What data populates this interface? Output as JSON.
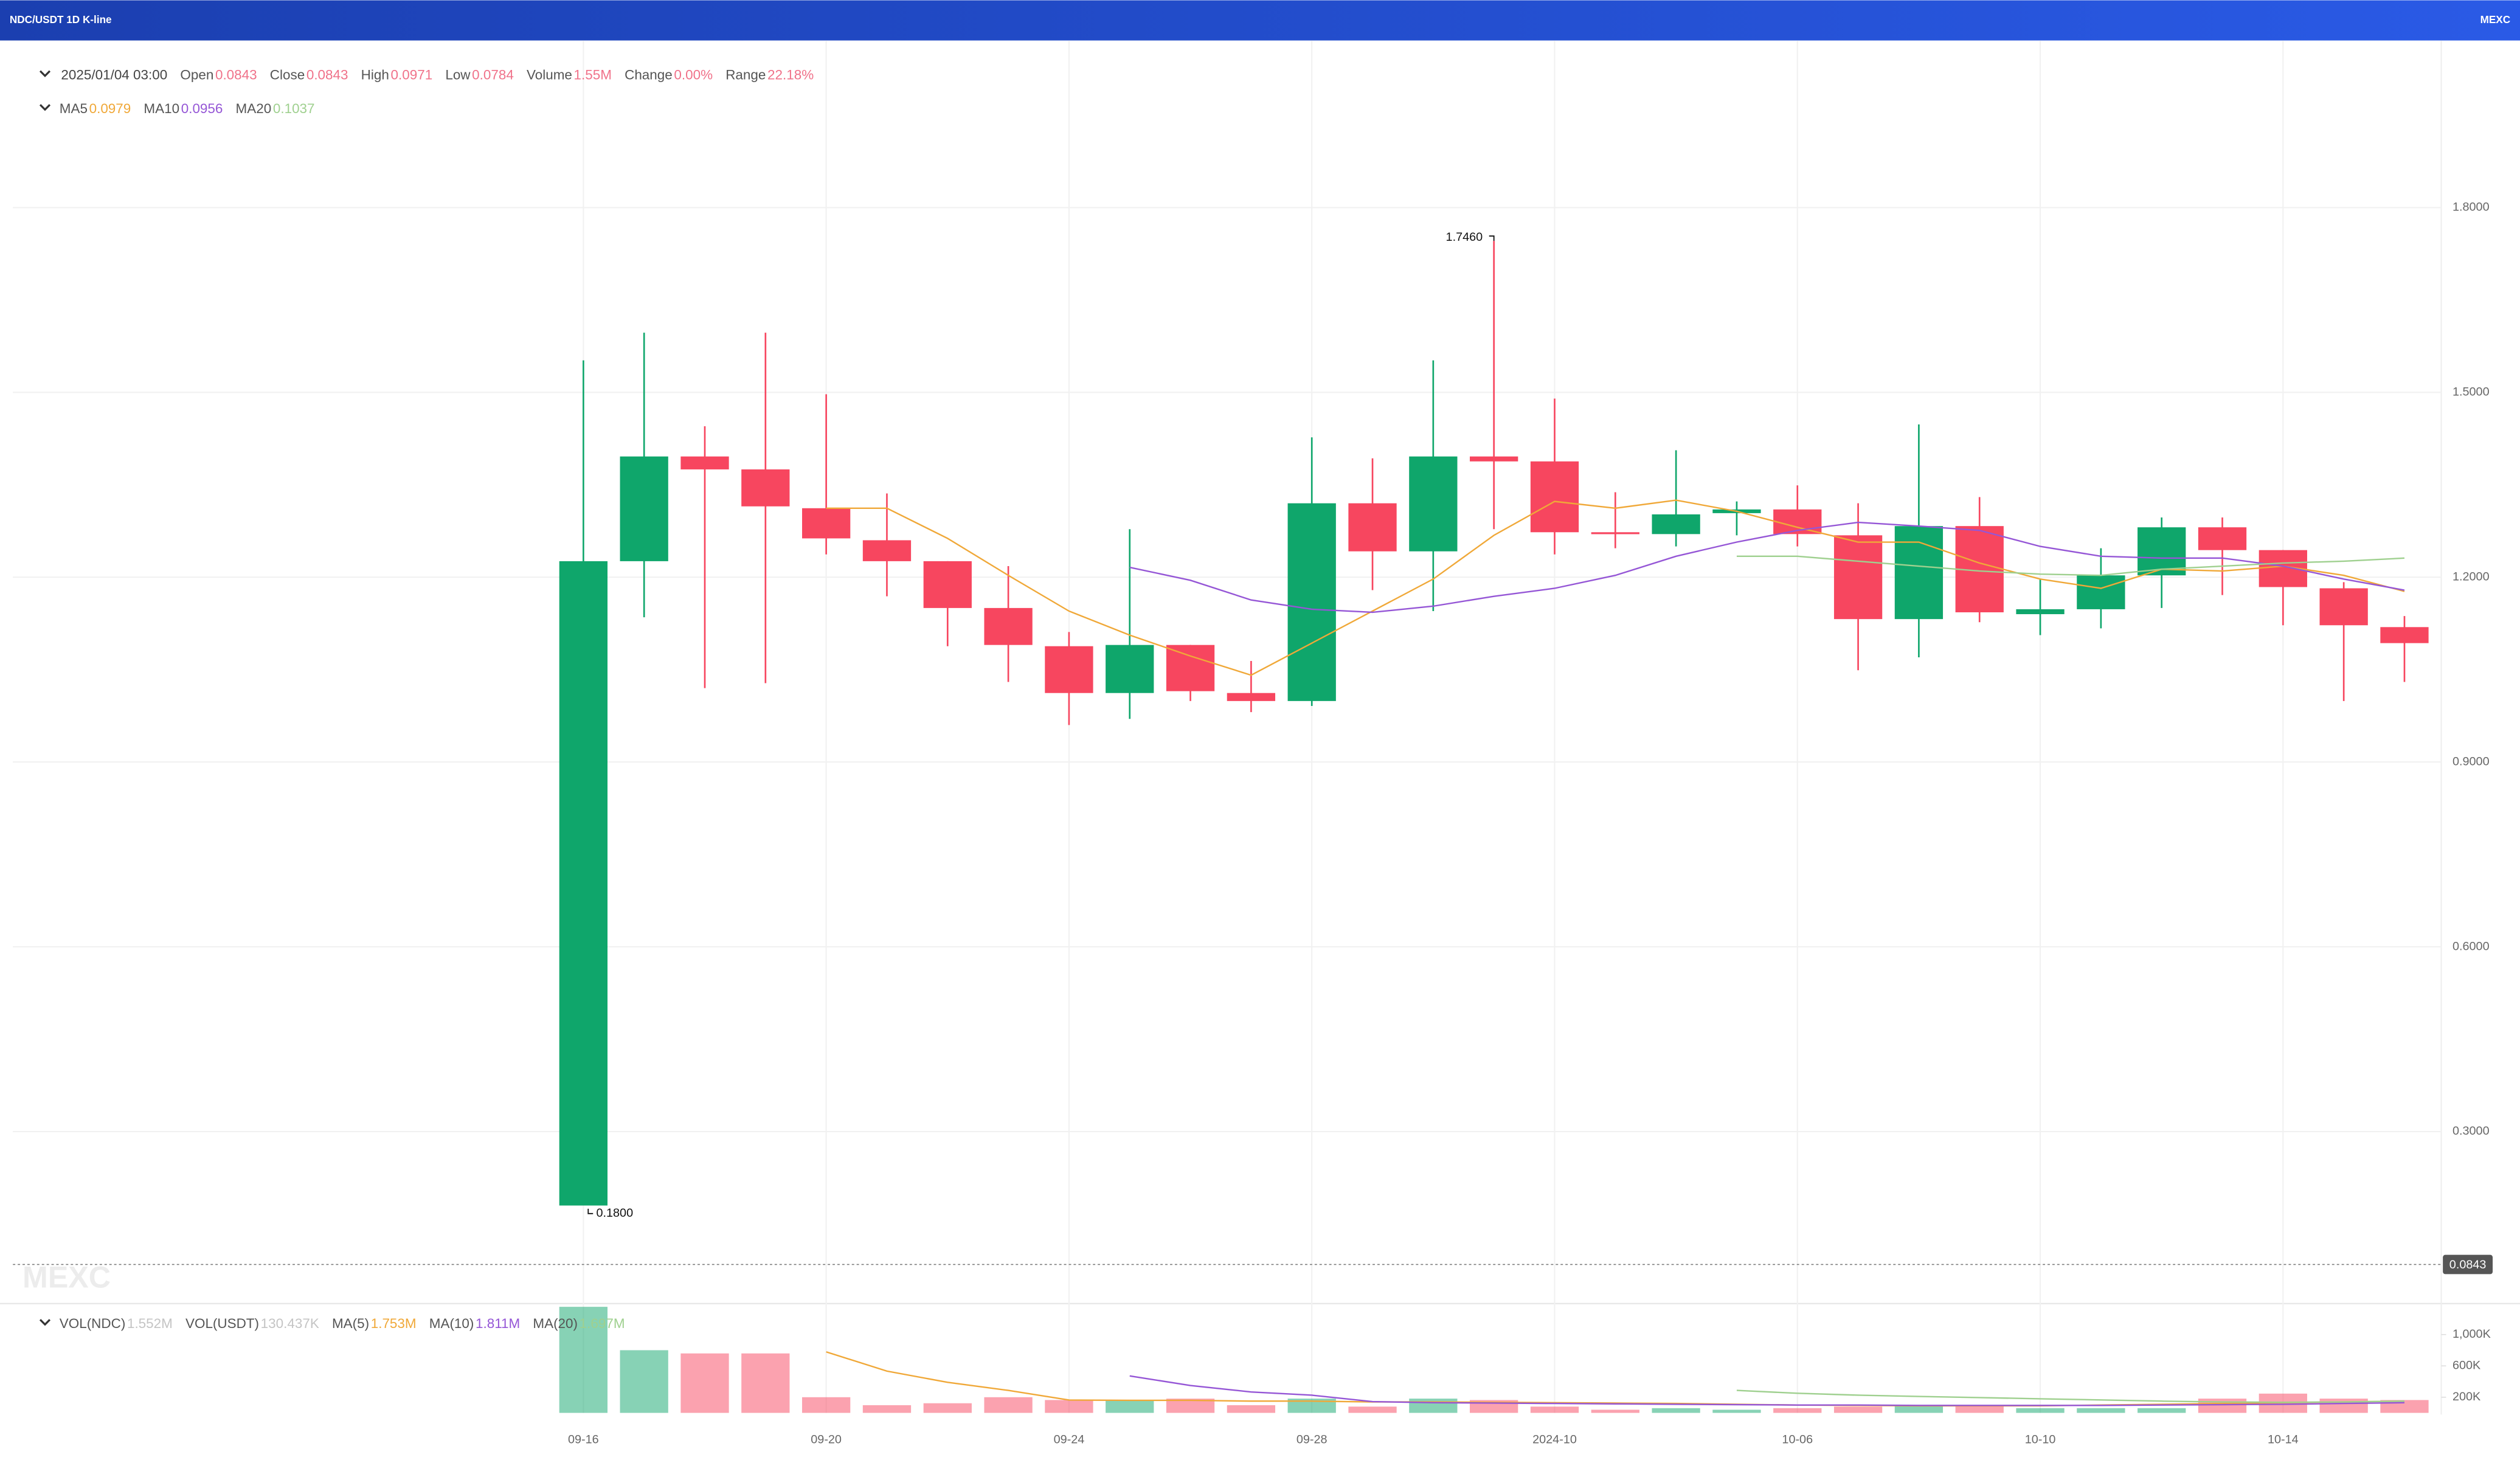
{
  "header": {
    "title": "NDC/USDT 1D K-line",
    "logo": "MEXC"
  },
  "info": {
    "date": "2025/01/04 03:00",
    "fields": [
      {
        "label": "Open",
        "value": "0.0843"
      },
      {
        "label": "Close",
        "value": "0.0843"
      },
      {
        "label": "High",
        "value": "0.0971"
      },
      {
        "label": "Low",
        "value": "0.0784"
      },
      {
        "label": "Volume",
        "value": "1.55M"
      },
      {
        "label": "Change",
        "value": "0.00%"
      },
      {
        "label": "Range",
        "value": "22.18%"
      }
    ]
  },
  "ma_info": [
    "0.0979",
    "0.0956",
    "0.1037"
  ],
  "vol_info": {
    "fields": [
      {
        "label": "VOL(NDC)",
        "value": "1.552M"
      },
      {
        "label": "VOL(USDT)",
        "value": "130.437K"
      }
    ],
    "ma_values": [
      "1.753M",
      "1.811M",
      "1.697M"
    ]
  },
  "watermark": "MEXC",
  "chart_data": [
    {
      "type": "candlestick",
      "categories": [
        "09-16",
        null,
        null,
        null,
        "09-20",
        null,
        null,
        null,
        "09-24",
        null,
        null,
        null,
        "09-28",
        null,
        null,
        null,
        "2024-10",
        null,
        null,
        null,
        "10-06",
        null,
        null,
        null,
        "10-10",
        null,
        null,
        null,
        "10-14",
        null,
        null
      ],
      "open": [
        0.18,
        1.226,
        1.396,
        1.375,
        1.312,
        1.26,
        1.226,
        1.15,
        1.088,
        1.012,
        1.09,
        1.012,
        0.999,
        1.32,
        1.242,
        1.396,
        1.388,
        1.273,
        1.27,
        1.304,
        1.31,
        1.268,
        1.132,
        1.283,
        1.14,
        1.148,
        1.203,
        1.281,
        1.244,
        1.182,
        1.119
      ],
      "high": [
        1.552,
        1.597,
        1.445,
        1.597,
        1.497,
        1.336,
        1.226,
        1.218,
        1.111,
        1.278,
        1.09,
        1.064,
        1.427,
        1.393,
        1.552,
        1.746,
        1.49,
        1.338,
        1.406,
        1.323,
        1.349,
        1.32,
        1.448,
        1.33,
        1.197,
        1.247,
        1.297,
        1.297,
        1.244,
        1.192,
        1.137
      ],
      "low": [
        0.18,
        1.135,
        1.02,
        1.028,
        1.237,
        1.169,
        1.088,
        1.03,
        0.96,
        0.97,
        0.999,
        0.981,
        0.991,
        1.179,
        1.145,
        1.278,
        1.237,
        1.247,
        1.25,
        1.268,
        1.25,
        1.049,
        1.07,
        1.127,
        1.106,
        1.117,
        1.15,
        1.171,
        1.122,
        0.999,
        1.03
      ],
      "close": [
        1.226,
        1.396,
        1.375,
        1.315,
        1.263,
        1.226,
        1.15,
        1.09,
        1.012,
        1.09,
        1.015,
        0.999,
        1.32,
        1.242,
        1.396,
        1.388,
        1.273,
        1.27,
        1.302,
        1.31,
        1.27,
        1.132,
        1.283,
        1.143,
        1.148,
        1.203,
        1.281,
        1.244,
        1.184,
        1.122,
        1.093
      ],
      "up_color": "#0fa66b",
      "down_color": "#f7465f",
      "series": [
        {
          "name": "MA5",
          "color": "#f0a838",
          "values": [
            null,
            null,
            null,
            null,
            1.312,
            1.312,
            1.263,
            1.203,
            1.145,
            1.106,
            1.072,
            1.041,
            1.093,
            1.145,
            1.197,
            1.268,
            1.323,
            1.312,
            1.325,
            1.307,
            1.281,
            1.257,
            1.257,
            1.223,
            1.197,
            1.182,
            1.213,
            1.21,
            1.218,
            1.203,
            1.177
          ]
        },
        {
          "name": "MA10",
          "color": "#9556d6",
          "values": [
            null,
            null,
            null,
            null,
            null,
            null,
            null,
            null,
            null,
            1.216,
            1.195,
            1.163,
            1.148,
            1.143,
            1.153,
            1.169,
            1.182,
            1.203,
            1.234,
            1.257,
            1.276,
            1.289,
            1.283,
            1.276,
            1.25,
            1.234,
            1.231,
            1.231,
            1.218,
            1.197,
            1.179
          ]
        },
        {
          "name": "MA20",
          "color": "#9fd08f",
          "values": [
            null,
            null,
            null,
            null,
            null,
            null,
            null,
            null,
            null,
            null,
            null,
            null,
            null,
            null,
            null,
            null,
            null,
            null,
            null,
            1.234,
            1.234,
            1.226,
            1.218,
            1.21,
            1.205,
            1.203,
            1.213,
            1.218,
            1.223,
            1.226,
            1.231
          ]
        }
      ],
      "ylim": [
        0.02,
        2.07
      ],
      "yticks": [
        {
          "value": 0.3,
          "label": "0.3000"
        },
        {
          "value": 0.6,
          "label": "0.6000"
        },
        {
          "value": 0.9,
          "label": "0.9000"
        },
        {
          "value": 1.2,
          "label": "1.2000"
        },
        {
          "value": 1.5,
          "label": "1.5000"
        },
        {
          "value": 1.8,
          "label": "1.8000"
        }
      ],
      "grid": true,
      "high_label": "1.7460",
      "low_label": "0.1800",
      "last_price": 0.0843
    },
    {
      "type": "bar",
      "values": [
        1354,
        800,
        759,
        759,
        200,
        98,
        123,
        200,
        164,
        164,
        182,
        98,
        182,
        80,
        182,
        164,
        80,
        40,
        60,
        40,
        60,
        80,
        98,
        98,
        60,
        60,
        60,
        182,
        246,
        182,
        164
      ],
      "series": [
        {
          "name": "MA(5)",
          "color": "#f0a838",
          "values": [
            null,
            null,
            null,
            null,
            779,
            533,
            390,
            287,
            164,
            160,
            160,
            150,
            150,
            140,
            140,
            135,
            130,
            125,
            120,
            110,
            100,
            95,
            90,
            90,
            90,
            100,
            110,
            120,
            130,
            140,
            150
          ]
        },
        {
          "name": "MA(10)",
          "color": "#9556d6",
          "values": [
            null,
            null,
            null,
            null,
            null,
            null,
            null,
            null,
            null,
            472,
            349,
            267,
            226,
            144,
            130,
            125,
            120,
            115,
            110,
            105,
            100,
            100,
            95,
            95,
            95,
            95,
            100,
            105,
            110,
            120,
            130
          ]
        },
        {
          "name": "MA(20)",
          "color": "#9fd08f",
          "values": [
            null,
            null,
            null,
            null,
            null,
            null,
            null,
            null,
            null,
            null,
            null,
            null,
            null,
            null,
            null,
            null,
            null,
            null,
            null,
            287,
            250,
            226,
            210,
            195,
            180,
            165,
            150,
            140,
            135,
            140,
            150
          ]
        }
      ],
      "ylim": [
        0,
        1395
      ],
      "yticks": [
        {
          "value": 200,
          "label": "200K"
        },
        {
          "value": 600,
          "label": "600K"
        },
        {
          "value": 1000,
          "label": "1,000K"
        }
      ]
    }
  ]
}
